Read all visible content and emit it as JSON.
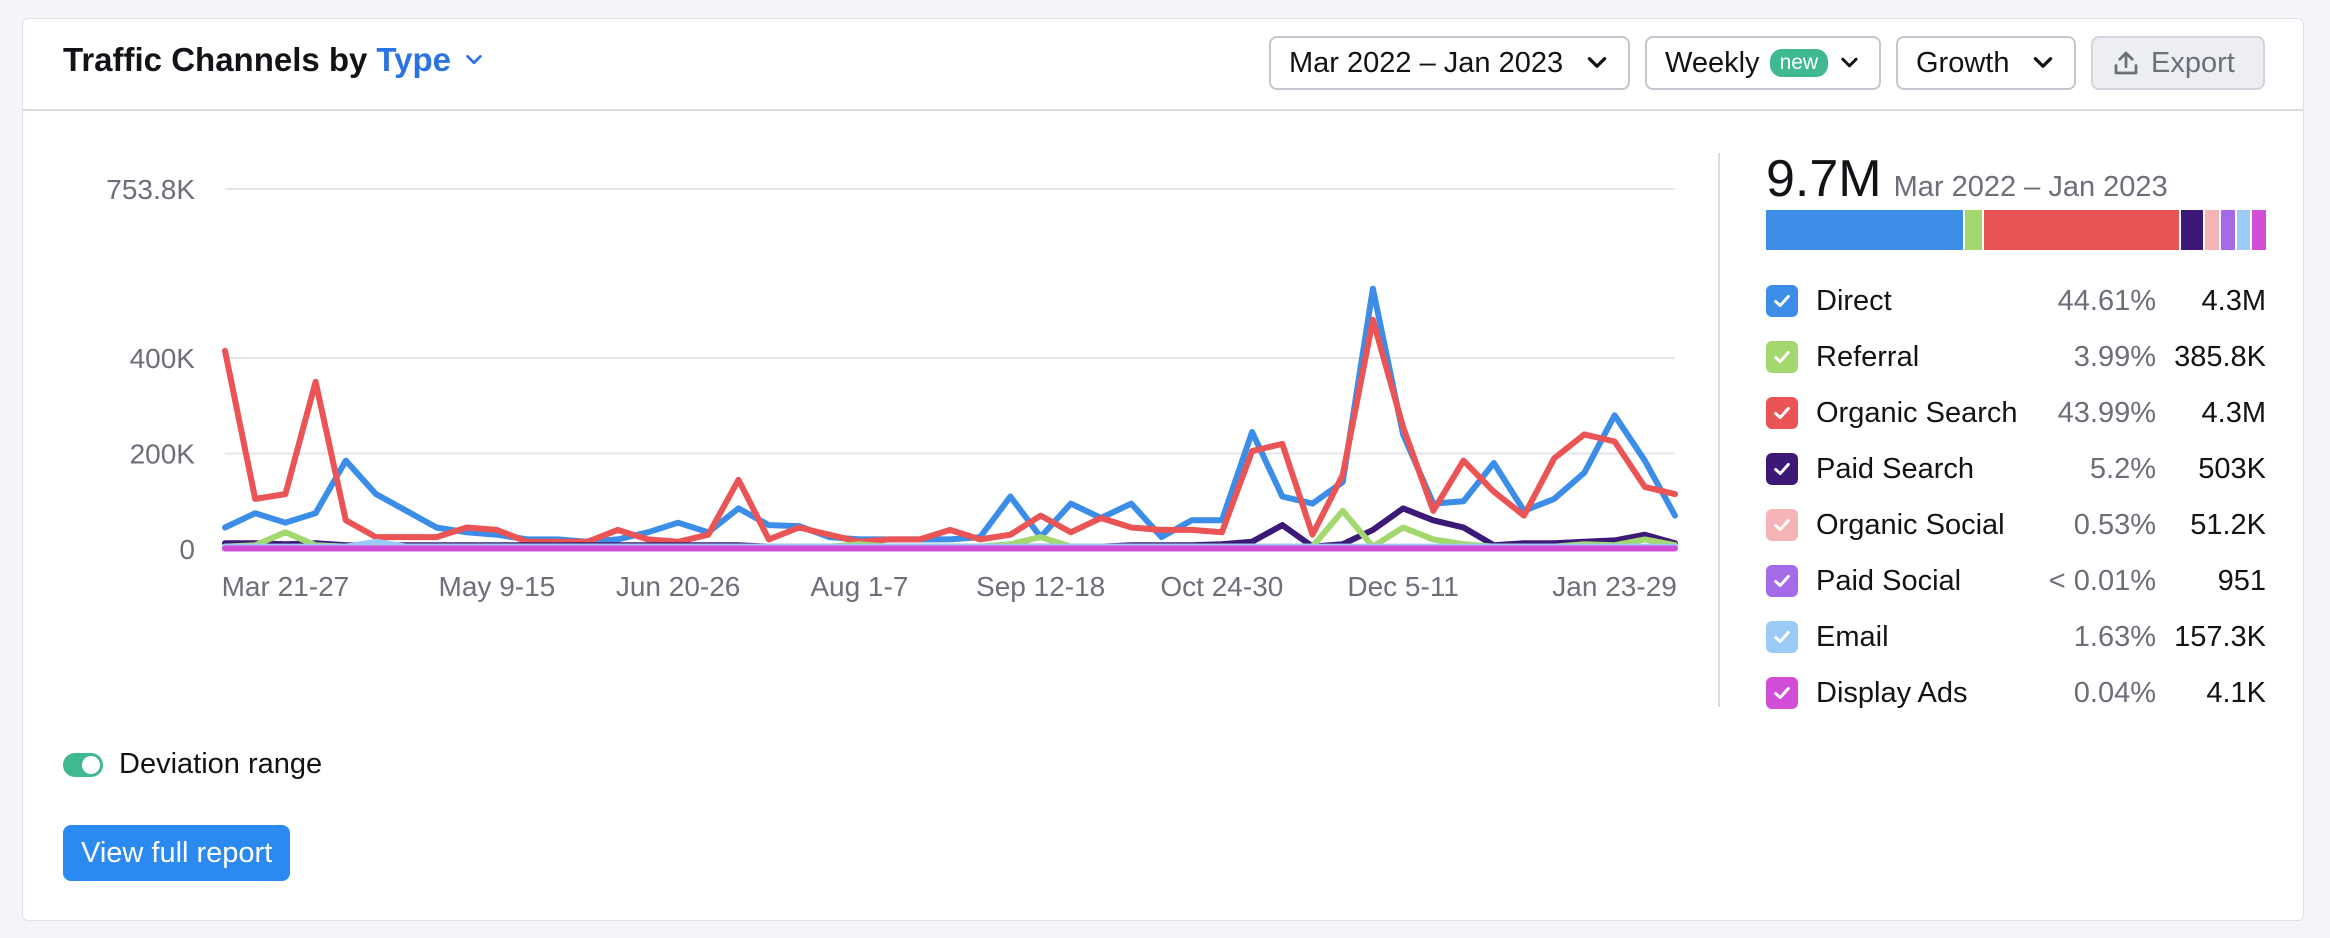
{
  "header": {
    "title_prefix": "Traffic Channels by",
    "title_type": "Type",
    "date_range": "Mar 2022 – Jan 2023",
    "granularity": "Weekly",
    "granularity_badge": "new",
    "metric": "Growth",
    "export_label": "Export"
  },
  "summary": {
    "total": "9.7M",
    "range": "Mar 2022 – Jan 2023"
  },
  "legend": [
    {
      "name": "Direct",
      "pct": "44.61%",
      "value": "4.3M",
      "color": "#3b8de8",
      "share": 44.61
    },
    {
      "name": "Referral",
      "pct": "3.99%",
      "value": "385.8K",
      "color": "#a3d86e",
      "share": 3.99
    },
    {
      "name": "Organic Search",
      "pct": "43.99%",
      "value": "4.3M",
      "color": "#ea5455",
      "share": 43.99
    },
    {
      "name": "Paid Search",
      "pct": "5.2%",
      "value": "503K",
      "color": "#3c1877",
      "share": 5.2
    },
    {
      "name": "Organic Social",
      "pct": "0.53%",
      "value": "51.2K",
      "color": "#f4b4b8",
      "share": 0.53
    },
    {
      "name": "Paid Social",
      "pct": "< 0.01%",
      "value": "951",
      "color": "#a56ae8",
      "share": 0.01
    },
    {
      "name": "Email",
      "pct": "1.63%",
      "value": "157.3K",
      "color": "#9ccaf7",
      "share": 1.63
    },
    {
      "name": "Display Ads",
      "pct": "0.04%",
      "value": "4.1K",
      "color": "#d14fd8",
      "share": 0.04
    }
  ],
  "controls": {
    "deviation_label": "Deviation range",
    "view_report_label": "View full report"
  },
  "chart_data": {
    "type": "line",
    "y_ticks": [
      {
        "label": "753.8K",
        "value": 753800
      },
      {
        "label": "400K",
        "value": 400000
      },
      {
        "label": "200K",
        "value": 200000
      },
      {
        "label": "0",
        "value": 0
      }
    ],
    "ylim": [
      0,
      753800
    ],
    "x_tick_labels": [
      {
        "label": "Mar 21-27",
        "index": 2
      },
      {
        "label": "May 9-15",
        "index": 9
      },
      {
        "label": "Jun 20-26",
        "index": 15
      },
      {
        "label": "Aug 1-7",
        "index": 21
      },
      {
        "label": "Sep 12-18",
        "index": 27
      },
      {
        "label": "Oct 24-30",
        "index": 33
      },
      {
        "label": "Dec 5-11",
        "index": 39
      },
      {
        "label": "Jan 23-29",
        "index": 46
      }
    ],
    "n_points": 49,
    "grid": true,
    "series": [
      {
        "name": "Direct",
        "color": "#3b8de8",
        "values": [
          45000,
          75000,
          55000,
          75000,
          185000,
          115000,
          80000,
          45000,
          35000,
          30000,
          20000,
          20000,
          15000,
          20000,
          35000,
          55000,
          35000,
          85000,
          50000,
          48000,
          25000,
          20000,
          20000,
          20000,
          20000,
          25000,
          110000,
          25000,
          95000,
          65000,
          95000,
          25000,
          60000,
          60000,
          245000,
          110000,
          95000,
          140000,
          545000,
          240000,
          95000,
          100000,
          180000,
          80000,
          105000,
          160000,
          280000,
          185000,
          70000
        ]
      },
      {
        "name": "Organic Search",
        "color": "#ea5455",
        "values": [
          415000,
          105000,
          115000,
          350000,
          60000,
          25000,
          25000,
          25000,
          45000,
          40000,
          15000,
          15000,
          15000,
          40000,
          20000,
          15000,
          30000,
          145000,
          20000,
          45000,
          30000,
          15000,
          20000,
          20000,
          40000,
          20000,
          30000,
          70000,
          35000,
          65000,
          45000,
          40000,
          40000,
          35000,
          205000,
          220000,
          30000,
          155000,
          480000,
          255000,
          80000,
          185000,
          120000,
          70000,
          190000,
          240000,
          225000,
          130000,
          115000
        ]
      },
      {
        "name": "Paid Search",
        "color": "#3c1877",
        "values": [
          12000,
          12000,
          10000,
          12000,
          8000,
          8000,
          8000,
          8000,
          8000,
          8000,
          8000,
          8000,
          8000,
          8000,
          8000,
          8000,
          8000,
          8000,
          5000,
          5000,
          5000,
          5000,
          5000,
          5000,
          5000,
          5000,
          5000,
          5000,
          5000,
          5000,
          8000,
          8000,
          8000,
          10000,
          15000,
          50000,
          5000,
          10000,
          40000,
          85000,
          60000,
          45000,
          8000,
          12000,
          12000,
          15000,
          18000,
          30000,
          12000
        ]
      },
      {
        "name": "Referral",
        "color": "#a3d86e",
        "values": [
          5000,
          8000,
          35000,
          8000,
          5000,
          5000,
          5000,
          5000,
          5000,
          5000,
          5000,
          5000,
          5000,
          5000,
          5000,
          5000,
          5000,
          5000,
          5000,
          5000,
          5000,
          10000,
          5000,
          5000,
          5000,
          5000,
          10000,
          25000,
          5000,
          5000,
          5000,
          5000,
          5000,
          5000,
          5000,
          5000,
          5000,
          80000,
          5000,
          45000,
          20000,
          10000,
          5000,
          5000,
          5000,
          10000,
          8000,
          20000,
          8000
        ]
      },
      {
        "name": "Email",
        "color": "#9ccaf7",
        "values": [
          5000,
          5000,
          5000,
          5000,
          5000,
          15000,
          5000,
          5000,
          5000,
          5000,
          5000,
          5000,
          5000,
          5000,
          5000,
          5000,
          5000,
          5000,
          5000,
          5000,
          5000,
          5000,
          5000,
          5000,
          5000,
          5000,
          5000,
          5000,
          5000,
          5000,
          5000,
          5000,
          5000,
          5000,
          5000,
          5000,
          5000,
          5000,
          5000,
          5000,
          5000,
          5000,
          5000,
          5000,
          5000,
          5000,
          5000,
          5000,
          5000
        ]
      },
      {
        "name": "Display Ads",
        "color": "#d14fd8",
        "values": [
          1000,
          1000,
          1000,
          1000,
          1000,
          1000,
          1000,
          1000,
          1000,
          1000,
          1000,
          1000,
          1000,
          1000,
          1000,
          1000,
          1000,
          1000,
          1000,
          1000,
          1000,
          1000,
          1000,
          1000,
          1000,
          1000,
          1000,
          1000,
          1000,
          1000,
          1000,
          1000,
          1000,
          1000,
          1000,
          1000,
          1000,
          1000,
          1000,
          1000,
          1000,
          1000,
          1000,
          1000,
          1000,
          1000,
          1000,
          1000,
          1000
        ]
      }
    ]
  }
}
